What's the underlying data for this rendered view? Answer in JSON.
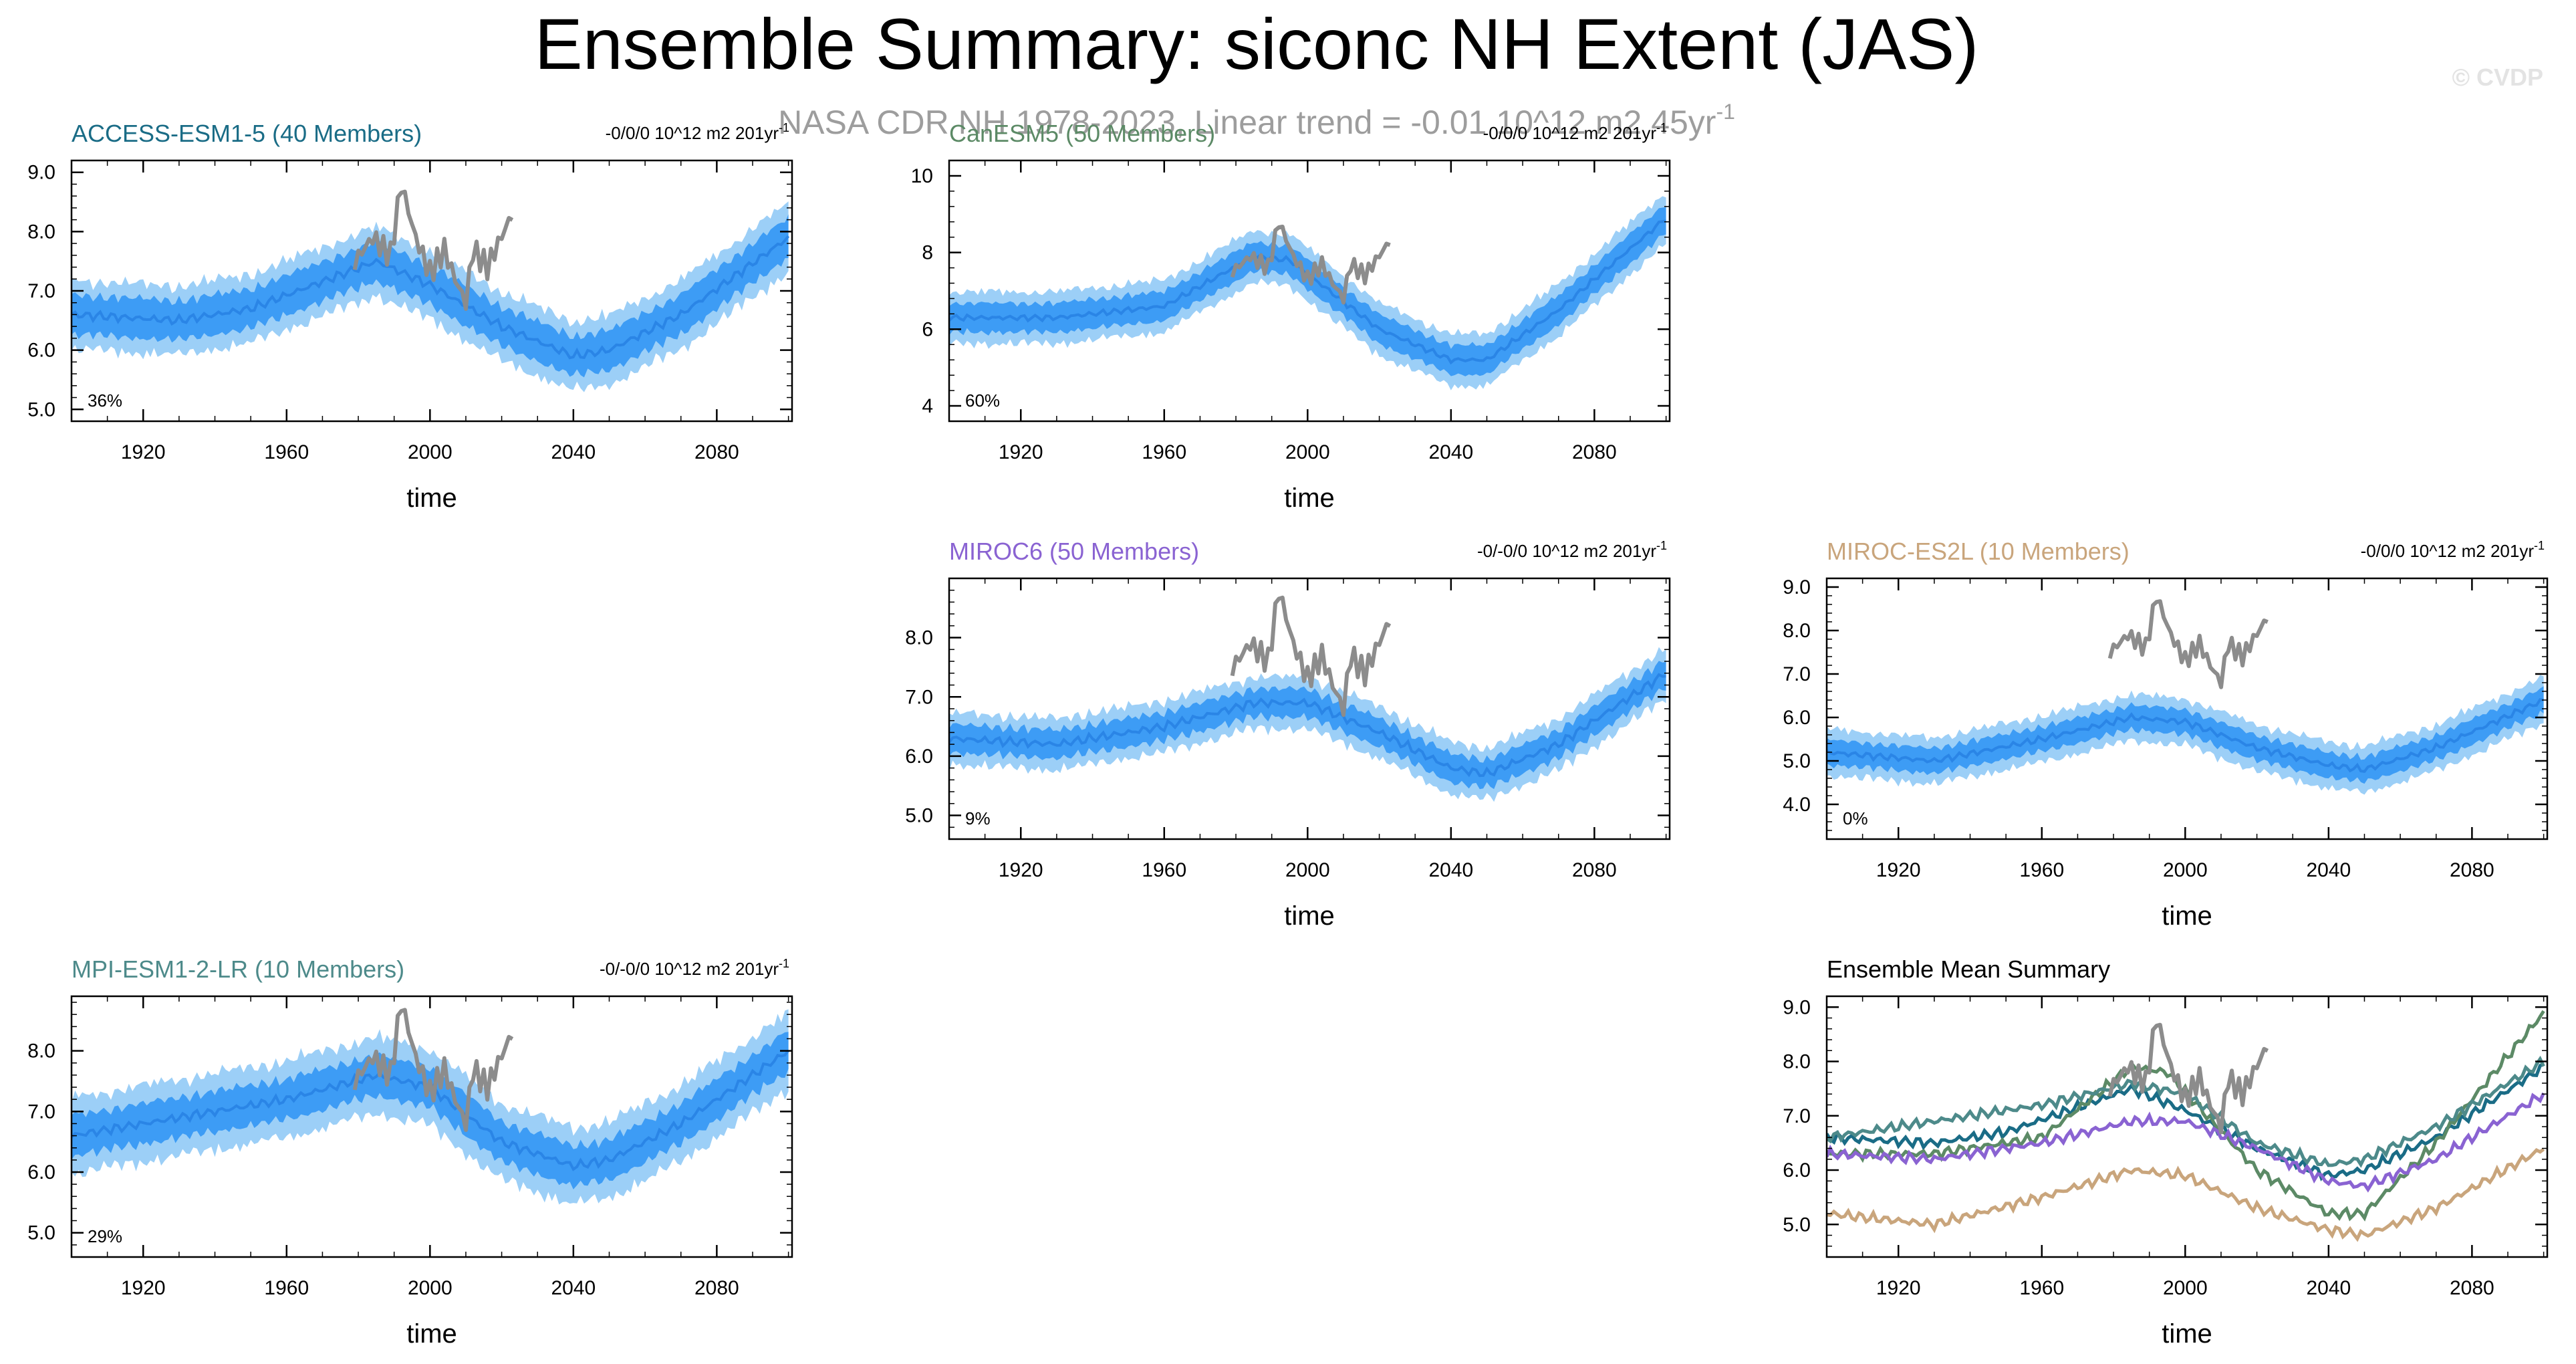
{
  "page": {
    "title": "Ensemble Summary: siconc NH Extent (JAS)",
    "subtitle": "NASA CDR NH 1978-2023, Linear trend = -0.01 10^12 m2 45yr",
    "subtitle_superscript": "-1",
    "watermark": "© CVDP"
  },
  "colors": {
    "band_outer": "#9ccff7",
    "band_inner": "#3d9cf5",
    "mean_line": "#2a85e6",
    "obs_line": "#8c8c8c"
  },
  "chart_data": [
    {
      "id": "access",
      "type": "line",
      "title": "ACCESS-ESM1-5 (40 Members)",
      "title_color": "#1a6c86",
      "trend_label": "-0/0/0 10^12 m2 201yr",
      "trend_superscript": "-1",
      "percent_label": "36%",
      "xlabel": "time",
      "xlim": [
        1900,
        2101
      ],
      "ylim": [
        4.8,
        9.2
      ],
      "yticks": [
        5.0,
        6.0,
        7.0,
        8.0,
        9.0
      ],
      "ytick_labels": [
        "5.0",
        "6.0",
        "7.0",
        "8.0",
        "9.0"
      ],
      "xticks": [
        1920,
        1960,
        2000,
        2040,
        2080
      ],
      "xtick_labels": [
        "1920",
        "1960",
        "2000",
        "2040",
        "2080"
      ],
      "series": [
        {
          "name": "ensemble mean",
          "x": [
            1900,
            1930,
            1950,
            1985,
            2000,
            2020,
            2040,
            2050,
            2070,
            2100
          ],
          "values": [
            6.6,
            6.5,
            6.7,
            7.5,
            7.1,
            6.4,
            5.9,
            6.0,
            6.6,
            7.9
          ]
        },
        {
          "name": "ensemble spread inner",
          "x": [
            1900,
            1930,
            1950,
            1985,
            2000,
            2020,
            2040,
            2050,
            2070,
            2100
          ],
          "values": [
            0.35,
            0.35,
            0.35,
            0.35,
            0.35,
            0.35,
            0.35,
            0.35,
            0.35,
            0.35
          ]
        },
        {
          "name": "ensemble spread outer",
          "x": [
            1900,
            1930,
            1950,
            1985,
            2000,
            2020,
            2040,
            2050,
            2070,
            2100
          ],
          "values": [
            0.6,
            0.6,
            0.6,
            0.6,
            0.6,
            0.6,
            0.6,
            0.6,
            0.6,
            0.6
          ]
        },
        {
          "name": "observations",
          "x": [
            1979,
            1984,
            1989,
            1992,
            1996,
            2000,
            2004,
            2007,
            2010,
            2012,
            2016,
            2019,
            2023
          ],
          "values": [
            7.5,
            7.9,
            7.6,
            8.8,
            7.9,
            7.3,
            7.7,
            7.2,
            6.8,
            7.7,
            7.4,
            7.8,
            8.3
          ]
        }
      ]
    },
    {
      "id": "canesm",
      "type": "line",
      "title": "CanESM5 (50 Members)",
      "title_color": "#5c8a66",
      "trend_label": "-0/0/0 10^12 m2 201yr",
      "trend_superscript": "-1",
      "percent_label": "60%",
      "xlabel": "time",
      "xlim": [
        1900,
        2101
      ],
      "ylim": [
        3.6,
        10.4
      ],
      "yticks": [
        4,
        6,
        8,
        10
      ],
      "ytick_labels": [
        "4",
        "6",
        "8",
        "10"
      ],
      "xticks": [
        1920,
        1960,
        2000,
        2040,
        2080
      ],
      "xtick_labels": [
        "1920",
        "1960",
        "2000",
        "2040",
        "2080"
      ],
      "series": [
        {
          "name": "ensemble mean",
          "x": [
            1900,
            1930,
            1960,
            1985,
            1995,
            2020,
            2040,
            2050,
            2070,
            2100
          ],
          "values": [
            6.3,
            6.3,
            6.6,
            7.9,
            7.8,
            6.0,
            5.2,
            5.2,
            6.5,
            8.9
          ]
        },
        {
          "name": "ensemble spread inner",
          "x": [
            1900,
            1930,
            1960,
            1985,
            1995,
            2020,
            2040,
            2050,
            2070,
            2100
          ],
          "values": [
            0.4,
            0.4,
            0.4,
            0.4,
            0.4,
            0.4,
            0.4,
            0.4,
            0.4,
            0.4
          ]
        },
        {
          "name": "ensemble spread outer",
          "x": [
            1900,
            1930,
            1960,
            1985,
            1995,
            2020,
            2040,
            2050,
            2070,
            2100
          ],
          "values": [
            0.7,
            0.7,
            0.7,
            0.7,
            0.7,
            0.7,
            0.7,
            0.7,
            0.7,
            0.7
          ]
        },
        {
          "name": "observations",
          "x": [
            1979,
            1984,
            1989,
            1992,
            1996,
            2000,
            2004,
            2007,
            2010,
            2012,
            2016,
            2019,
            2023
          ],
          "values": [
            7.5,
            7.9,
            7.6,
            8.8,
            7.9,
            7.3,
            7.7,
            7.2,
            6.8,
            7.7,
            7.4,
            7.8,
            8.3
          ]
        }
      ]
    },
    {
      "id": "miroc6",
      "type": "line",
      "title": "MIROC6 (50 Members)",
      "title_color": "#8a63d2",
      "trend_label": "-0/-0/0 10^12 m2 201yr",
      "trend_superscript": "-1",
      "percent_label": "9%",
      "xlabel": "time",
      "xlim": [
        1900,
        2101
      ],
      "ylim": [
        4.6,
        9.0
      ],
      "yticks": [
        5.0,
        6.0,
        7.0,
        8.0
      ],
      "ytick_labels": [
        "5.0",
        "6.0",
        "7.0",
        "8.0"
      ],
      "xticks": [
        1920,
        1960,
        2000,
        2040,
        2080
      ],
      "xtick_labels": [
        "1920",
        "1960",
        "2000",
        "2040",
        "2080"
      ],
      "series": [
        {
          "name": "ensemble mean",
          "x": [
            1900,
            1930,
            1960,
            1985,
            2000,
            2020,
            2040,
            2050,
            2070,
            2100
          ],
          "values": [
            6.3,
            6.2,
            6.5,
            6.9,
            6.9,
            6.4,
            5.8,
            5.7,
            6.2,
            7.4
          ]
        },
        {
          "name": "ensemble spread inner",
          "x": [
            1900,
            1930,
            1960,
            1985,
            2000,
            2020,
            2040,
            2050,
            2070,
            2100
          ],
          "values": [
            0.25,
            0.25,
            0.25,
            0.25,
            0.25,
            0.25,
            0.25,
            0.25,
            0.25,
            0.25
          ]
        },
        {
          "name": "ensemble spread outer",
          "x": [
            1900,
            1930,
            1960,
            1985,
            2000,
            2020,
            2040,
            2050,
            2070,
            2100
          ],
          "values": [
            0.45,
            0.45,
            0.45,
            0.45,
            0.45,
            0.45,
            0.45,
            0.45,
            0.45,
            0.45
          ]
        },
        {
          "name": "observations",
          "x": [
            1979,
            1984,
            1989,
            1992,
            1996,
            2000,
            2004,
            2007,
            2010,
            2012,
            2016,
            2019,
            2023
          ],
          "values": [
            7.5,
            7.9,
            7.6,
            8.8,
            7.9,
            7.3,
            7.7,
            7.2,
            6.8,
            7.7,
            7.4,
            7.8,
            8.3
          ]
        }
      ]
    },
    {
      "id": "mirocesl",
      "type": "line",
      "title": "MIROC-ES2L (10 Members)",
      "title_color": "#c9a57c",
      "trend_label": "-0/0/0 10^12 m2 201yr",
      "trend_superscript": "-1",
      "percent_label": "0%",
      "xlabel": "time",
      "xlim": [
        1900,
        2101
      ],
      "ylim": [
        3.2,
        9.2
      ],
      "yticks": [
        4.0,
        5.0,
        6.0,
        7.0,
        8.0,
        9.0
      ],
      "ytick_labels": [
        "4.0",
        "5.0",
        "6.0",
        "7.0",
        "8.0",
        "9.0"
      ],
      "xticks": [
        1920,
        1960,
        2000,
        2040,
        2080
      ],
      "xtick_labels": [
        "1920",
        "1960",
        "2000",
        "2040",
        "2080"
      ],
      "series": [
        {
          "name": "ensemble mean",
          "x": [
            1900,
            1930,
            1960,
            1985,
            2000,
            2020,
            2040,
            2050,
            2070,
            2100
          ],
          "values": [
            5.2,
            5.0,
            5.5,
            6.0,
            5.9,
            5.3,
            4.9,
            4.8,
            5.3,
            6.4
          ]
        },
        {
          "name": "ensemble spread inner",
          "x": [
            1900,
            1930,
            1960,
            1985,
            2000,
            2020,
            2040,
            2050,
            2070,
            2100
          ],
          "values": [
            0.3,
            0.3,
            0.3,
            0.3,
            0.3,
            0.3,
            0.3,
            0.3,
            0.3,
            0.3
          ]
        },
        {
          "name": "ensemble spread outer",
          "x": [
            1900,
            1930,
            1960,
            1985,
            2000,
            2020,
            2040,
            2050,
            2070,
            2100
          ],
          "values": [
            0.55,
            0.55,
            0.55,
            0.55,
            0.55,
            0.55,
            0.55,
            0.55,
            0.55,
            0.55
          ]
        },
        {
          "name": "observations",
          "x": [
            1979,
            1984,
            1989,
            1992,
            1996,
            2000,
            2004,
            2007,
            2010,
            2012,
            2016,
            2019,
            2023
          ],
          "values": [
            7.5,
            7.9,
            7.6,
            8.8,
            7.9,
            7.3,
            7.7,
            7.2,
            6.8,
            7.7,
            7.4,
            7.8,
            8.3
          ]
        }
      ]
    },
    {
      "id": "mpi",
      "type": "line",
      "title": "MPI-ESM1-2-LR (10 Members)",
      "title_color": "#4d8a8a",
      "trend_label": "-0/-0/0 10^12 m2 201yr",
      "trend_superscript": "-1",
      "percent_label": "29%",
      "xlabel": "time",
      "xlim": [
        1900,
        2101
      ],
      "ylim": [
        4.6,
        8.9
      ],
      "yticks": [
        5.0,
        6.0,
        7.0,
        8.0
      ],
      "ytick_labels": [
        "5.0",
        "6.0",
        "7.0",
        "8.0"
      ],
      "xticks": [
        1920,
        1960,
        2000,
        2040,
        2080
      ],
      "xtick_labels": [
        "1920",
        "1960",
        "2000",
        "2040",
        "2080"
      ],
      "series": [
        {
          "name": "ensemble mean",
          "x": [
            1900,
            1930,
            1960,
            1985,
            2000,
            2020,
            2040,
            2050,
            2070,
            2100
          ],
          "values": [
            6.6,
            6.9,
            7.2,
            7.6,
            7.4,
            6.5,
            6.1,
            6.2,
            6.8,
            8.0
          ]
        },
        {
          "name": "ensemble spread inner",
          "x": [
            1900,
            1930,
            1960,
            1985,
            2000,
            2020,
            2040,
            2050,
            2070,
            2100
          ],
          "values": [
            0.35,
            0.35,
            0.35,
            0.35,
            0.35,
            0.35,
            0.35,
            0.35,
            0.35,
            0.35
          ]
        },
        {
          "name": "ensemble spread outer",
          "x": [
            1900,
            1930,
            1960,
            1985,
            2000,
            2020,
            2040,
            2050,
            2070,
            2100
          ],
          "values": [
            0.65,
            0.65,
            0.65,
            0.65,
            0.65,
            0.65,
            0.65,
            0.65,
            0.65,
            0.65
          ]
        },
        {
          "name": "observations",
          "x": [
            1979,
            1984,
            1989,
            1992,
            1996,
            2000,
            2004,
            2007,
            2010,
            2012,
            2016,
            2019,
            2023
          ],
          "values": [
            7.5,
            7.9,
            7.6,
            8.8,
            7.9,
            7.3,
            7.7,
            7.2,
            6.8,
            7.7,
            7.4,
            7.8,
            8.3
          ]
        }
      ]
    },
    {
      "id": "summary",
      "type": "line",
      "title": "Ensemble Mean Summary",
      "title_color": "#000000",
      "xlabel": "time",
      "xlim": [
        1900,
        2101
      ],
      "ylim": [
        4.4,
        9.2
      ],
      "yticks": [
        5.0,
        6.0,
        7.0,
        8.0,
        9.0
      ],
      "ytick_labels": [
        "5.0",
        "6.0",
        "7.0",
        "8.0",
        "9.0"
      ],
      "xticks": [
        1920,
        1960,
        2000,
        2040,
        2080
      ],
      "xtick_labels": [
        "1920",
        "1960",
        "2000",
        "2040",
        "2080"
      ],
      "series": [
        {
          "name": "ACCESS-ESM1-5",
          "color": "#1a6c86",
          "x": [
            1900,
            1930,
            1950,
            1985,
            2000,
            2020,
            2040,
            2050,
            2070,
            2100
          ],
          "values": [
            6.6,
            6.5,
            6.7,
            7.5,
            7.1,
            6.4,
            5.9,
            6.0,
            6.6,
            7.9
          ]
        },
        {
          "name": "CanESM5",
          "color": "#5c8a66",
          "x": [
            1900,
            1930,
            1960,
            1985,
            1995,
            2020,
            2040,
            2050,
            2070,
            2100
          ],
          "values": [
            6.3,
            6.3,
            6.6,
            7.9,
            7.8,
            6.0,
            5.2,
            5.2,
            6.5,
            8.9
          ]
        },
        {
          "name": "MIROC6",
          "color": "#8a63d2",
          "x": [
            1900,
            1930,
            1960,
            1985,
            2000,
            2020,
            2040,
            2050,
            2070,
            2100
          ],
          "values": [
            6.3,
            6.2,
            6.5,
            6.9,
            6.9,
            6.4,
            5.8,
            5.7,
            6.2,
            7.4
          ]
        },
        {
          "name": "MIROC-ES2L",
          "color": "#c9a57c",
          "x": [
            1900,
            1930,
            1960,
            1985,
            2000,
            2020,
            2040,
            2050,
            2070,
            2100
          ],
          "values": [
            5.2,
            5.0,
            5.5,
            6.0,
            5.9,
            5.3,
            4.9,
            4.8,
            5.3,
            6.4
          ]
        },
        {
          "name": "MPI-ESM1-2-LR",
          "color": "#4d8a8a",
          "x": [
            1900,
            1930,
            1960,
            1985,
            2000,
            2020,
            2040,
            2050,
            2070,
            2100
          ],
          "values": [
            6.6,
            6.9,
            7.2,
            7.6,
            7.4,
            6.5,
            6.1,
            6.2,
            6.8,
            8.0
          ]
        },
        {
          "name": "observations",
          "color": "#8c8c8c",
          "x": [
            1979,
            1984,
            1989,
            1992,
            1996,
            2000,
            2004,
            2007,
            2010,
            2012,
            2016,
            2019,
            2023
          ],
          "values": [
            7.5,
            7.9,
            7.6,
            8.8,
            7.9,
            7.3,
            7.7,
            7.2,
            6.8,
            7.7,
            7.4,
            7.8,
            8.3
          ]
        }
      ]
    }
  ]
}
